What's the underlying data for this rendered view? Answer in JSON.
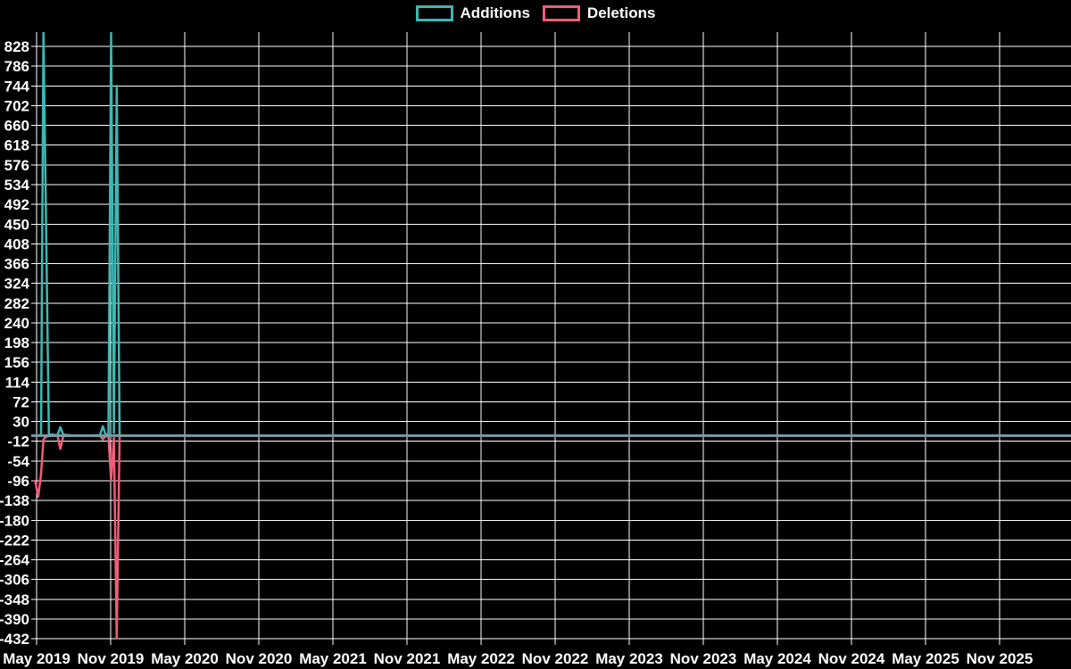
{
  "legend": {
    "items": [
      {
        "label": "Additions",
        "color": "#3cb8b4"
      },
      {
        "label": "Deletions",
        "color": "#f25c78"
      }
    ]
  },
  "chart_data": {
    "type": "line",
    "title": "",
    "legend_position": "top-center",
    "grid": true,
    "background_color": "#000000",
    "grid_color": "#ffffff",
    "text_color": "#ffffff",
    "zero_line_color": "#7e99a8",
    "y_tick_values": [
      828,
      786,
      744,
      702,
      660,
      618,
      576,
      534,
      492,
      450,
      408,
      366,
      324,
      282,
      240,
      198,
      156,
      114,
      72,
      30,
      -12,
      -54,
      -96,
      -138,
      -180,
      -222,
      -264,
      -306,
      -348,
      -390,
      -432
    ],
    "x_tick_labels": [
      "May 2019",
      "Nov 2019",
      "May 2020",
      "Nov 2020",
      "May 2021",
      "Nov 2021",
      "May 2022",
      "Nov 2022",
      "May 2023",
      "Nov 2023",
      "May 2024",
      "Nov 2024",
      "May 2025",
      "Nov 2025"
    ],
    "ylim": [
      -432,
      858
    ],
    "series": [
      {
        "name": "Additions",
        "color": "#3cb8b4",
        "points": [
          [
            "2019-04-28",
            0
          ],
          [
            "2019-05-05",
            0
          ],
          [
            "2019-05-12",
            2
          ],
          [
            "2019-05-18",
            858
          ],
          [
            "2019-06-01",
            3
          ],
          [
            "2019-06-22",
            1
          ],
          [
            "2019-06-29",
            18
          ],
          [
            "2019-07-06",
            2
          ],
          [
            "2019-08-03",
            0
          ],
          [
            "2019-09-07",
            0
          ],
          [
            "2019-10-05",
            1
          ],
          [
            "2019-10-12",
            20
          ],
          [
            "2019-10-19",
            3
          ],
          [
            "2019-10-26",
            2
          ],
          [
            "2019-11-02",
            858
          ],
          [
            "2019-11-09",
            6
          ],
          [
            "2019-11-16",
            744
          ],
          [
            "2019-11-23",
            1
          ],
          [
            "2019-11-30",
            0
          ]
        ]
      },
      {
        "name": "Deletions",
        "color": "#f25c78",
        "points": [
          [
            "2019-04-28",
            -96
          ],
          [
            "2019-05-05",
            -130
          ],
          [
            "2019-05-12",
            -82
          ],
          [
            "2019-05-18",
            -8
          ],
          [
            "2019-05-25",
            -2
          ],
          [
            "2019-06-01",
            -1
          ],
          [
            "2019-06-22",
            0
          ],
          [
            "2019-06-29",
            -28
          ],
          [
            "2019-07-06",
            -1
          ],
          [
            "2019-08-03",
            0
          ],
          [
            "2019-09-07",
            0
          ],
          [
            "2019-10-05",
            0
          ],
          [
            "2019-10-12",
            -8
          ],
          [
            "2019-10-19",
            -1
          ],
          [
            "2019-10-26",
            -2
          ],
          [
            "2019-11-02",
            -95
          ],
          [
            "2019-11-09",
            -5
          ],
          [
            "2019-11-16",
            -430
          ],
          [
            "2019-11-23",
            -1
          ],
          [
            "2019-11-30",
            0
          ]
        ]
      }
    ]
  }
}
